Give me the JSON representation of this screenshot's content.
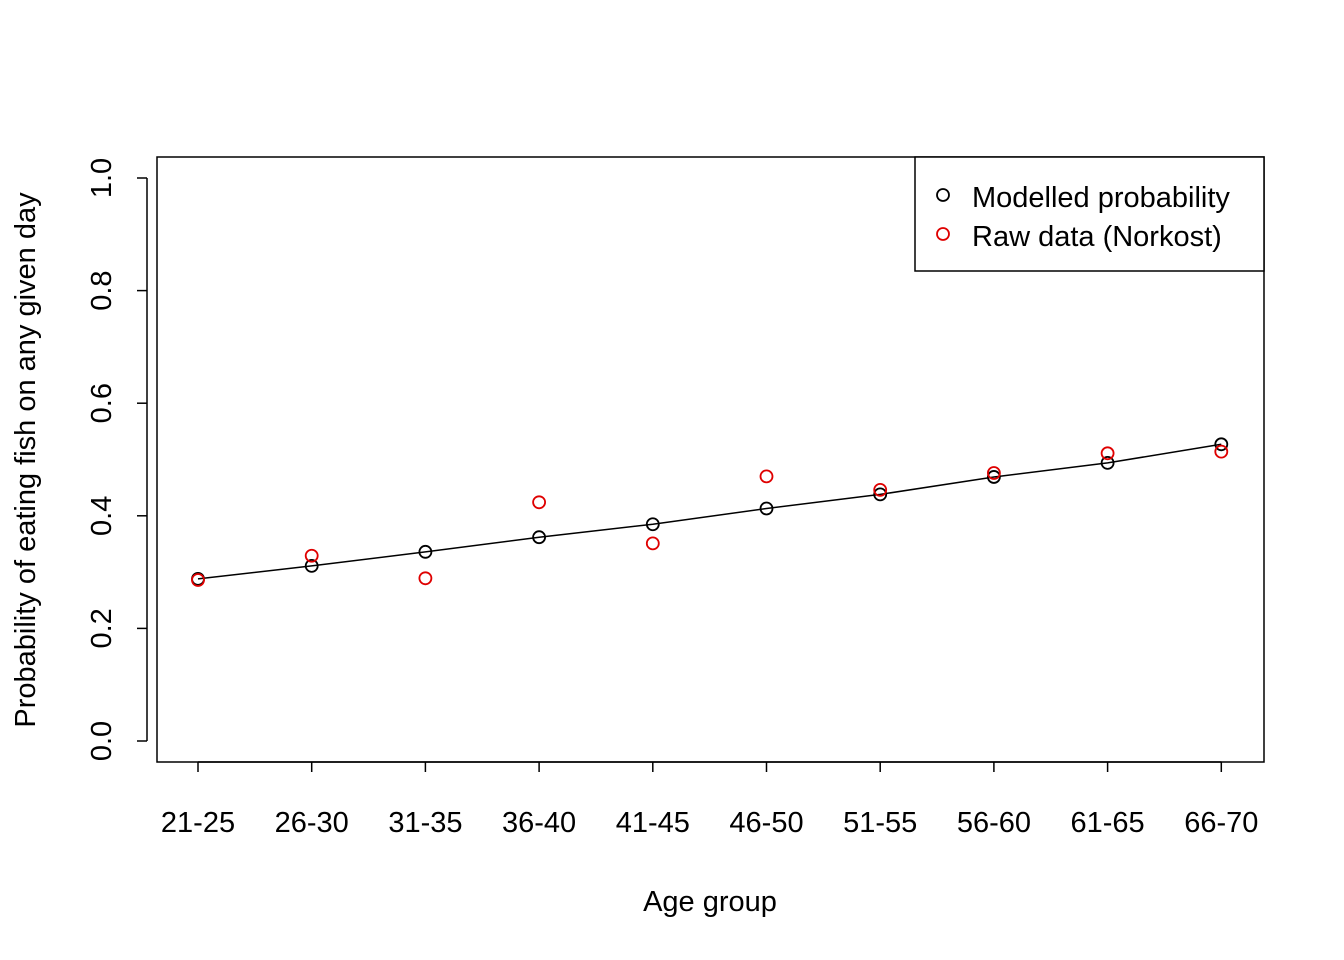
{
  "chart_data": {
    "type": "scatter",
    "title": "",
    "xlabel": "Age group",
    "ylabel": "Probability of eating fish on any given day",
    "categories": [
      "21-25",
      "26-30",
      "31-35",
      "36-40",
      "41-45",
      "46-50",
      "51-55",
      "56-60",
      "61-65",
      "66-70"
    ],
    "ylim": [
      0.0,
      1.0
    ],
    "yticks": [
      "0.0",
      "0.2",
      "0.4",
      "0.6",
      "0.8",
      "1.0"
    ],
    "grid": false,
    "legend_position": "top-right",
    "series": [
      {
        "name": "Modelled probability",
        "color": "#000000",
        "marker": "open-circle",
        "line": true,
        "values": [
          0.288,
          0.311,
          0.336,
          0.362,
          0.385,
          0.413,
          0.438,
          0.469,
          0.494,
          0.527
        ]
      },
      {
        "name": "Raw data (Norkost)",
        "color": "#DF0000",
        "marker": "open-circle",
        "line": false,
        "values": [
          0.286,
          0.329,
          0.289,
          0.424,
          0.351,
          0.47,
          0.446,
          0.476,
          0.511,
          0.514
        ]
      }
    ]
  }
}
